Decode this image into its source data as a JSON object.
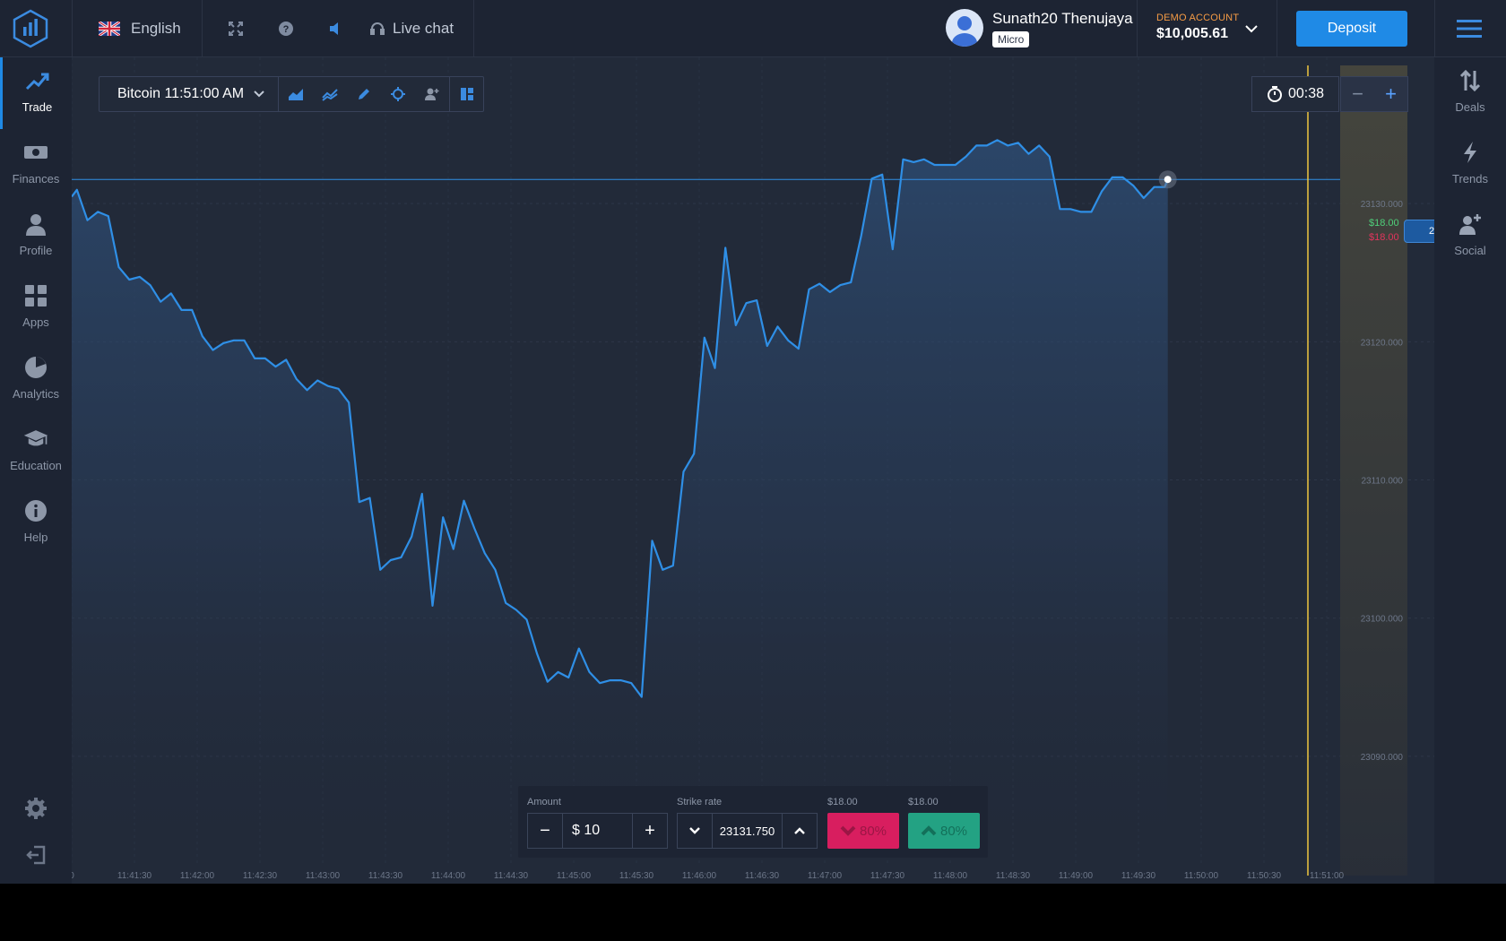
{
  "header": {
    "language": "English",
    "live_chat": "Live chat",
    "user": {
      "name": "Sunath20 Thenujaya",
      "badge": "Micro"
    },
    "account": {
      "label": "DEMO ACCOUNT",
      "balance": "$10,005.61"
    },
    "deposit_label": "Deposit"
  },
  "left_nav": [
    {
      "label": "Trade",
      "icon": "trend-up-icon",
      "active": true
    },
    {
      "label": "Finances",
      "icon": "banknote-icon"
    },
    {
      "label": "Profile",
      "icon": "user-icon"
    },
    {
      "label": "Apps",
      "icon": "grid-icon"
    },
    {
      "label": "Analytics",
      "icon": "pie-chart-icon"
    },
    {
      "label": "Education",
      "icon": "graduation-cap-icon"
    },
    {
      "label": "Help",
      "icon": "info-icon"
    }
  ],
  "right_nav": [
    {
      "label": "Deals",
      "icon": "up-down-arrows-icon"
    },
    {
      "label": "Trends",
      "icon": "lightning-icon"
    },
    {
      "label": "Social",
      "icon": "add-user-icon"
    }
  ],
  "toolbar": {
    "asset": "Bitcoin 11:51:00 AM"
  },
  "timer": "00:38",
  "payouts": {
    "up": "$18.00",
    "down": "$18.00"
  },
  "current_price": "23131.750",
  "trade_panel": {
    "amount_label": "Amount",
    "amount_value": "$ 10",
    "strike_label": "Strike rate",
    "strike_value": "23131.750",
    "down_payout": "$18.00",
    "up_payout": "$18.00",
    "down_pct": "80%",
    "up_pct": "80%"
  },
  "colors": {
    "accent": "#1f8ae6",
    "down": "#d81e5f",
    "up": "#23a283",
    "line": "#2f8fe6",
    "expiry": "#f0c640"
  },
  "chart_data": {
    "type": "area",
    "y_ticks": [
      "23130.000",
      "23120.000",
      "23110.000",
      "23100.000",
      "23090.000"
    ],
    "ylim": [
      23085.0,
      23140.0
    ],
    "x_ticks": [
      "0",
      "11:41:30",
      "11:42:00",
      "11:42:30",
      "11:43:00",
      "11:43:30",
      "11:44:00",
      "11:44:30",
      "11:45:00",
      "11:45:30",
      "11:46:00",
      "11:46:30",
      "11:47:00",
      "11:47:30",
      "11:48:00",
      "11:48:30",
      "11:49:00",
      "11:49:30",
      "11:50:00",
      "11:50:30",
      "11:51:00"
    ],
    "x_range_sec": [
      0,
      600
    ],
    "current_price": 23131.75,
    "expiry_sec": 591,
    "series": [
      {
        "points": [
          [
            0,
            23130.5
          ],
          [
            2.5,
            23131.0
          ],
          [
            7.5,
            23128.8
          ],
          [
            12.5,
            23129.4
          ],
          [
            17.5,
            23129.1
          ],
          [
            22.5,
            23125.4
          ],
          [
            27.5,
            23124.5
          ],
          [
            32.5,
            23124.7
          ],
          [
            37.5,
            23124.1
          ],
          [
            42.5,
            23122.9
          ],
          [
            47.5,
            23123.5
          ],
          [
            52.5,
            23122.3
          ],
          [
            57.5,
            23122.3
          ],
          [
            62.5,
            23120.4
          ],
          [
            67.5,
            23119.4
          ],
          [
            72.5,
            23119.9
          ],
          [
            77.5,
            23120.1
          ],
          [
            82.5,
            23120.1
          ],
          [
            87.5,
            23118.8
          ],
          [
            92.5,
            23118.8
          ],
          [
            97.5,
            23118.2
          ],
          [
            102.5,
            23118.7
          ],
          [
            107.5,
            23117.3
          ],
          [
            112.5,
            23116.5
          ],
          [
            117.5,
            23117.2
          ],
          [
            122.5,
            23116.8
          ],
          [
            127.5,
            23116.6
          ],
          [
            132.5,
            23115.6
          ],
          [
            137.5,
            23108.4
          ],
          [
            142.5,
            23108.7
          ],
          [
            147.5,
            23103.5
          ],
          [
            152.5,
            23104.2
          ],
          [
            157.5,
            23104.4
          ],
          [
            162.5,
            23105.9
          ],
          [
            167.5,
            23109.0
          ],
          [
            172.5,
            23100.9
          ],
          [
            177.5,
            23107.3
          ],
          [
            182.5,
            23105.0
          ],
          [
            187.5,
            23108.5
          ],
          [
            192.5,
            23106.5
          ],
          [
            197.5,
            23104.7
          ],
          [
            202.5,
            23103.5
          ],
          [
            207.5,
            23101.1
          ],
          [
            212.5,
            23100.6
          ],
          [
            217.5,
            23099.9
          ],
          [
            222.5,
            23097.4
          ],
          [
            227.5,
            23095.4
          ],
          [
            232.5,
            23096.1
          ],
          [
            237.5,
            23095.7
          ],
          [
            242.5,
            23097.8
          ],
          [
            247.5,
            23096.1
          ],
          [
            252.5,
            23095.3
          ],
          [
            257.5,
            23095.5
          ],
          [
            262.5,
            23095.5
          ],
          [
            267.5,
            23095.3
          ],
          [
            272.5,
            23094.3
          ],
          [
            277.5,
            23105.6
          ],
          [
            282.5,
            23103.5
          ],
          [
            287.5,
            23103.8
          ],
          [
            292.5,
            23110.6
          ],
          [
            297.5,
            23111.9
          ],
          [
            302.5,
            23120.3
          ],
          [
            307.5,
            23118.1
          ],
          [
            312.5,
            23126.8
          ],
          [
            317.5,
            23121.2
          ],
          [
            322.5,
            23122.8
          ],
          [
            327.5,
            23123.0
          ],
          [
            332.5,
            23119.7
          ],
          [
            337.5,
            23121.1
          ],
          [
            342.5,
            23120.1
          ],
          [
            347.5,
            23119.5
          ],
          [
            352.5,
            23123.8
          ],
          [
            357.5,
            23124.2
          ],
          [
            362.5,
            23123.6
          ],
          [
            367.5,
            23124.1
          ],
          [
            372.5,
            23124.3
          ],
          [
            377.5,
            23127.7
          ],
          [
            382.5,
            23131.8
          ],
          [
            387.5,
            23132.1
          ],
          [
            392.5,
            23126.7
          ],
          [
            397.5,
            23133.2
          ],
          [
            402.5,
            23133.0
          ],
          [
            407.5,
            23133.2
          ],
          [
            412.5,
            23132.8
          ],
          [
            417.5,
            23132.8
          ],
          [
            422.5,
            23132.8
          ],
          [
            427.5,
            23133.4
          ],
          [
            432.5,
            23134.2
          ],
          [
            437.5,
            23134.2
          ],
          [
            442.5,
            23134.6
          ],
          [
            447.5,
            23134.2
          ],
          [
            452.5,
            23134.4
          ],
          [
            457.5,
            23133.6
          ],
          [
            462.5,
            23134.2
          ],
          [
            467.5,
            23133.4
          ],
          [
            472.5,
            23129.6
          ],
          [
            477.5,
            23129.6
          ],
          [
            482.5,
            23129.4
          ],
          [
            487.5,
            23129.4
          ],
          [
            492.5,
            23130.9
          ],
          [
            497.5,
            23131.9
          ],
          [
            502.5,
            23131.9
          ],
          [
            507.5,
            23131.3
          ],
          [
            512.5,
            23130.4
          ],
          [
            517.5,
            23131.2
          ],
          [
            522.5,
            23131.2
          ],
          [
            524,
            23131.75
          ]
        ]
      }
    ]
  }
}
